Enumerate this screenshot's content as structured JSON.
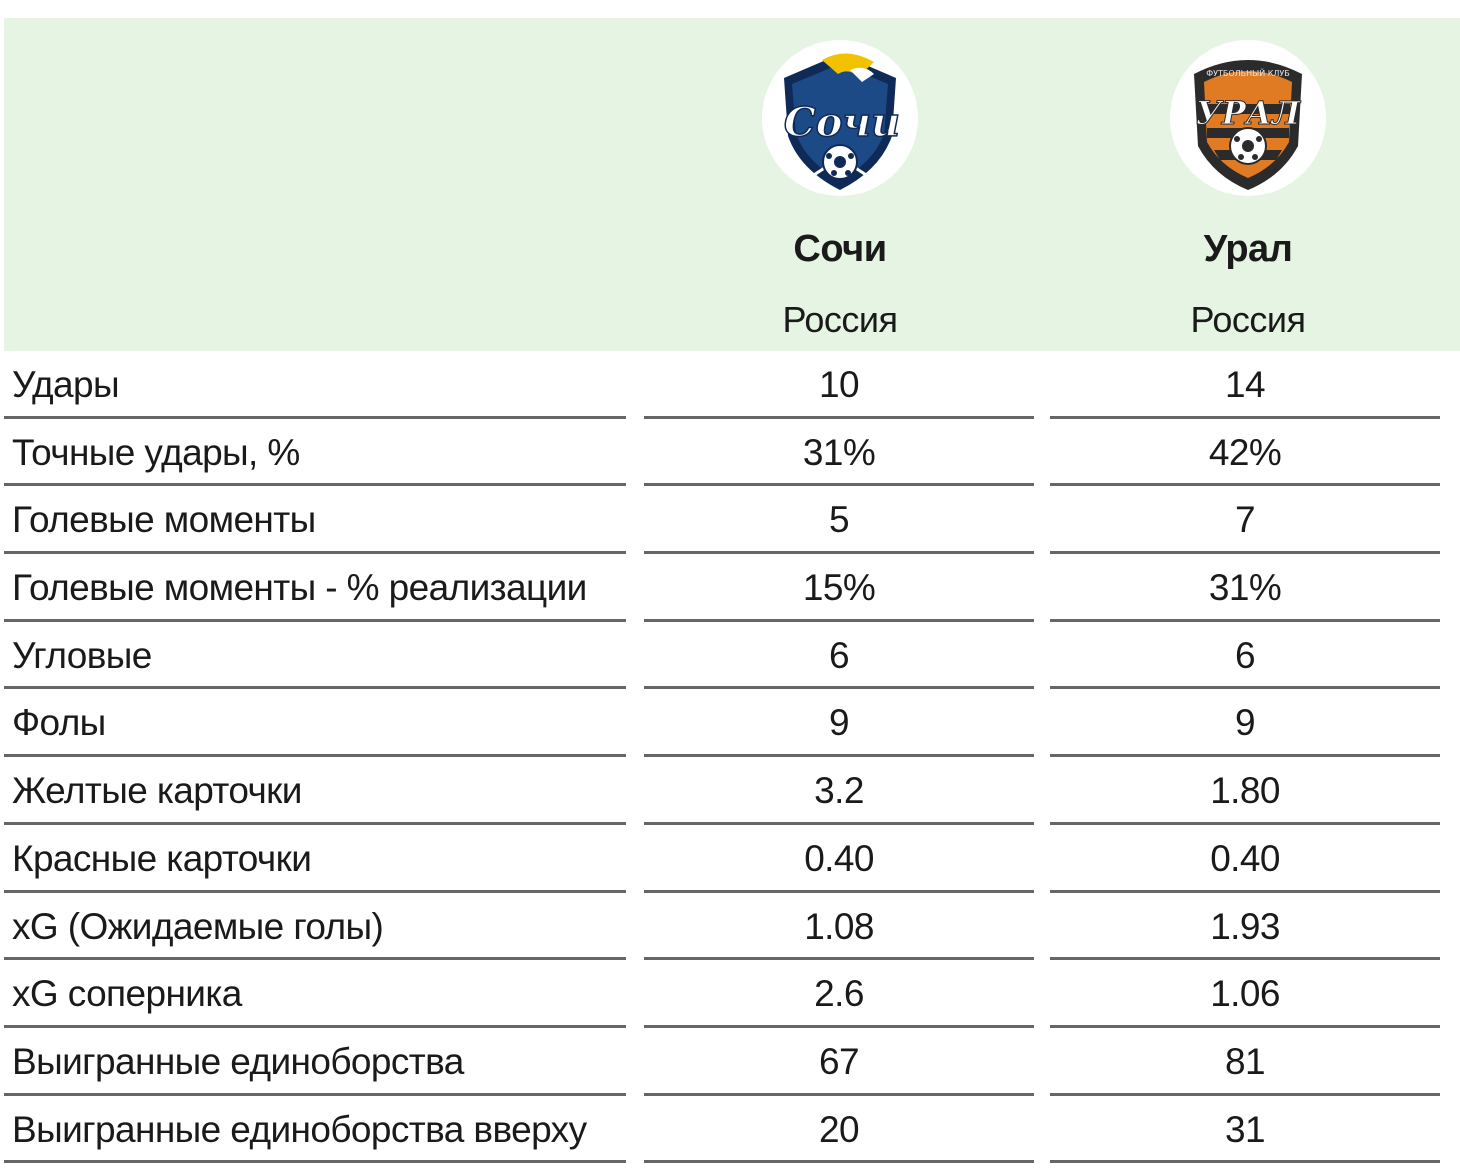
{
  "teams": {
    "home": {
      "name": "Сочи",
      "country": "Россия",
      "logo_text": "Сочи",
      "colors": {
        "primary": "#0f2a57",
        "accent": "#f2c200"
      }
    },
    "away": {
      "name": "Урал",
      "country": "Россия",
      "logo_text": "УРАЛ",
      "logo_small_text": "ФУТБОЛЬНЫЙ КЛУБ",
      "colors": {
        "primary": "#2b2b2b",
        "accent": "#e07b24"
      }
    }
  },
  "header_background": "#e6f4e3",
  "stats": [
    {
      "label": "Удары",
      "home": "10",
      "away": "14"
    },
    {
      "label": "Точные удары, %",
      "home": "31%",
      "away": "42%"
    },
    {
      "label": "Голевые моменты",
      "home": "5",
      "away": "7"
    },
    {
      "label": "Голевые моменты - % реализации",
      "home": "15%",
      "away": "31%"
    },
    {
      "label": "Угловые",
      "home": "6",
      "away": "6"
    },
    {
      "label": "Фолы",
      "home": "9",
      "away": "9"
    },
    {
      "label": "Желтые карточки",
      "home": "3.2",
      "away": "1.80"
    },
    {
      "label": "Красные карточки",
      "home": "0.40",
      "away": "0.40"
    },
    {
      "label": "xG (Ожидаемые голы)",
      "home": "1.08",
      "away": "1.93"
    },
    {
      "label": "xG соперника",
      "home": "2.6",
      "away": "1.06"
    },
    {
      "label": "Выигранные единоборства",
      "home": "67",
      "away": "81"
    },
    {
      "label": "Выигранные единоборства вверху",
      "home": "20",
      "away": "31"
    }
  ]
}
